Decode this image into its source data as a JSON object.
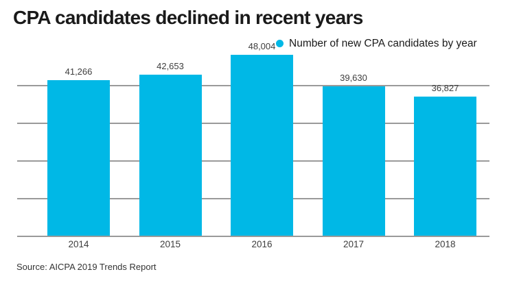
{
  "title": "CPA candidates declined in recent years",
  "legend": {
    "label": "Number of new CPA candidates by year"
  },
  "source": "Source: AICPA 2019 Trends Report",
  "colors": {
    "bar": "#00b8e6",
    "grid": "#9a9a9a",
    "title_text": "#1a1a1a",
    "label_text": "#3d3d3d"
  },
  "chart_data": {
    "type": "bar",
    "title": "CPA candidates declined in recent years",
    "categories": [
      "2014",
      "2015",
      "2016",
      "2017",
      "2018"
    ],
    "values": [
      41266,
      42653,
      48004,
      39630,
      36827
    ],
    "value_labels": [
      "41,266",
      "42,653",
      "48,004",
      "39,630",
      "36,827"
    ],
    "legend": [
      "Number of new CPA candidates by year"
    ],
    "legend_position": "top-right",
    "xlabel": "",
    "ylabel": "",
    "ylim": [
      0,
      50000
    ],
    "gridline_values": [
      10000,
      20000,
      30000,
      40000
    ],
    "grid": "horizontal",
    "source": "Source: AICPA 2019 Trends Report"
  }
}
